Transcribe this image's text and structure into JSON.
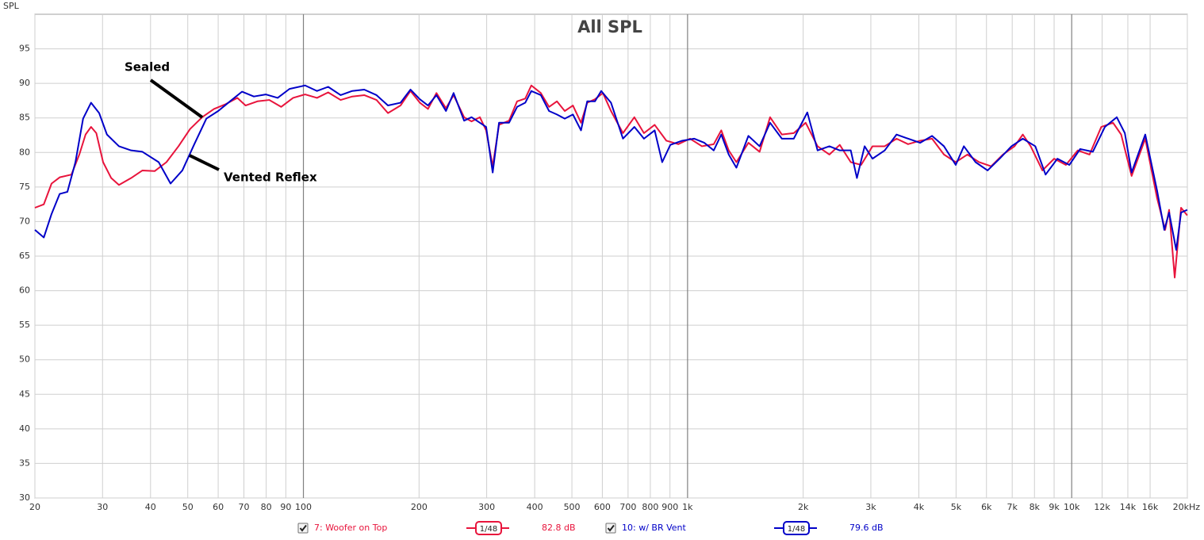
{
  "chart_data": {
    "type": "line",
    "title": "All SPL",
    "ylabel": "SPL",
    "log_x": true,
    "grid": true,
    "xlim": [
      20,
      20000
    ],
    "ylim": [
      30,
      100
    ],
    "xticks": [
      20,
      30,
      40,
      50,
      60,
      70,
      80,
      90,
      100,
      200,
      300,
      400,
      500,
      600,
      700,
      800,
      900,
      {
        "value": 1000,
        "label": "1k"
      },
      {
        "value": 2000,
        "label": "2k"
      },
      {
        "value": 3000,
        "label": "3k"
      },
      {
        "value": 4000,
        "label": "4k"
      },
      {
        "value": 5000,
        "label": "5k"
      },
      {
        "value": 6000,
        "label": "6k"
      },
      {
        "value": 7000,
        "label": "7k"
      },
      {
        "value": 8000,
        "label": "8k"
      },
      {
        "value": 9000,
        "label": "9k"
      },
      {
        "value": 10000,
        "label": "10k"
      },
      {
        "value": 12000,
        "label": "12k"
      },
      {
        "value": 14000,
        "label": "14k"
      },
      {
        "value": 16000,
        "label": "16k"
      },
      {
        "value": 20000,
        "label": "20kHz"
      }
    ],
    "yticks": [
      30,
      35,
      40,
      45,
      50,
      55,
      60,
      65,
      70,
      75,
      80,
      85,
      90,
      95
    ],
    "annotations": [
      "Sealed",
      "Vented Reflex"
    ],
    "series": [
      {
        "name": "7: Woofer on Top",
        "color": "#e8143c",
        "smoothing": "1/48",
        "level": "82.8 dB",
        "x": [
          20,
          21.1,
          22.1,
          23.2,
          24.9,
          26.1,
          27.1,
          28,
          28.9,
          30.1,
          31.6,
          33.1,
          35.6,
          38.1,
          41,
          44,
          47.3,
          50.7,
          54.5,
          58.5,
          62.8,
          67.3,
          70.7,
          75.9,
          81.5,
          87.5,
          94,
          101,
          108.5,
          116,
          125,
          134,
          144,
          155,
          166,
          179,
          190,
          201,
          211,
          222,
          235,
          246,
          262,
          274,
          288,
          299,
          311,
          323,
          343,
          360,
          378,
          392,
          415,
          436,
          457,
          479,
          503,
          528,
          548,
          574,
          602,
          632,
          679,
          727,
          770,
          821,
          881,
          946,
          1015,
          1090,
          1170,
          1224,
          1280,
          1340,
          1440,
          1540,
          1640,
          1760,
          1890,
          2030,
          2180,
          2340,
          2490,
          2660,
          2830,
          3030,
          3260,
          3500,
          3750,
          4030,
          4330,
          4650,
          4990,
          5350,
          5740,
          6170,
          6620,
          7100,
          7460,
          7820,
          8390,
          9000,
          9660,
          10370,
          11130,
          11940,
          12810,
          13450,
          14320,
          15540,
          16680,
          17510,
          17930,
          18540,
          19260,
          19990
        ],
        "values": [
          72.0,
          72.5,
          75.5,
          76.4,
          76.8,
          79.7,
          82.6,
          83.7,
          82.8,
          78.6,
          76.3,
          75.3,
          76.3,
          77.4,
          77.3,
          78.6,
          80.9,
          83.4,
          85.1,
          86.3,
          87.0,
          87.9,
          86.8,
          87.4,
          87.6,
          86.6,
          87.9,
          88.4,
          87.9,
          88.7,
          87.6,
          88.1,
          88.3,
          87.6,
          85.7,
          86.8,
          88.9,
          87.2,
          86.3,
          88.6,
          86.4,
          88.3,
          85.1,
          84.5,
          85.1,
          83.2,
          78.0,
          84.0,
          84.6,
          87.4,
          87.8,
          89.7,
          88.6,
          86.6,
          87.4,
          86.0,
          86.8,
          84.3,
          87.2,
          87.7,
          88.6,
          86.0,
          82.8,
          85.1,
          82.8,
          84.0,
          81.7,
          81.2,
          82.0,
          80.9,
          81.2,
          83.2,
          80.3,
          78.6,
          81.4,
          80.1,
          85.1,
          82.6,
          82.8,
          84.3,
          80.9,
          79.7,
          81.1,
          78.6,
          78.2,
          80.9,
          80.9,
          82.0,
          81.2,
          81.7,
          82.0,
          79.7,
          78.6,
          79.7,
          78.6,
          78.0,
          79.7,
          80.9,
          82.6,
          80.9,
          77.4,
          79.1,
          78.2,
          80.3,
          79.7,
          83.7,
          84.3,
          82.6,
          76.6,
          82.0,
          73.4,
          68.8,
          71.7,
          61.9,
          72.0,
          70.9
        ]
      },
      {
        "name": "10: w/ BR Vent",
        "color": "#0000c8",
        "smoothing": "1/48",
        "level": "79.6 dB",
        "x": [
          20,
          21.1,
          22.1,
          23.2,
          24.3,
          25.5,
          26.7,
          28,
          29.4,
          30.8,
          33.1,
          35.6,
          38.1,
          42,
          45.1,
          48.4,
          52,
          55.9,
          60,
          64.4,
          69.2,
          74.3,
          79.8,
          85.7,
          92,
          101,
          108.5,
          116,
          125,
          134,
          144,
          155,
          166,
          179,
          190,
          201,
          211,
          222,
          235,
          246,
          262,
          274,
          288,
          299,
          311,
          323,
          343,
          360,
          378,
          392,
          415,
          436,
          457,
          479,
          503,
          528,
          548,
          574,
          596,
          632,
          679,
          727,
          770,
          821,
          859,
          902,
          968,
          1040,
          1106,
          1170,
          1224,
          1280,
          1340,
          1440,
          1540,
          1640,
          1760,
          1890,
          2050,
          2180,
          2340,
          2490,
          2660,
          2760,
          2890,
          3030,
          3260,
          3500,
          3750,
          4030,
          4330,
          4650,
          4990,
          5240,
          5620,
          6040,
          6490,
          6970,
          7460,
          8040,
          8550,
          9180,
          9860,
          10520,
          11350,
          12200,
          13100,
          13750,
          14320,
          15540,
          16680,
          17420,
          17930,
          18710,
          19260,
          19990
        ],
        "values": [
          68.8,
          67.7,
          71.1,
          74.0,
          74.3,
          78.6,
          84.9,
          87.2,
          85.7,
          82.6,
          80.9,
          80.3,
          80.1,
          78.6,
          75.5,
          77.4,
          81.2,
          84.9,
          86.0,
          87.4,
          88.8,
          88.1,
          88.4,
          87.9,
          89.2,
          89.7,
          88.9,
          89.5,
          88.3,
          88.9,
          89.1,
          88.3,
          86.8,
          87.2,
          89.1,
          87.7,
          86.8,
          88.3,
          86.0,
          88.6,
          84.6,
          85.1,
          84.3,
          83.7,
          77.1,
          84.3,
          84.3,
          86.6,
          87.2,
          88.9,
          88.3,
          86.0,
          85.5,
          84.9,
          85.5,
          83.2,
          87.4,
          87.4,
          88.9,
          87.2,
          82.0,
          83.7,
          82.0,
          83.2,
          78.6,
          81.1,
          81.7,
          82.0,
          81.4,
          80.3,
          82.6,
          79.7,
          77.8,
          82.4,
          80.9,
          84.3,
          82.0,
          82.0,
          85.8,
          80.3,
          80.9,
          80.3,
          80.3,
          76.3,
          80.9,
          79.1,
          80.3,
          82.6,
          82.0,
          81.4,
          82.4,
          80.9,
          78.2,
          80.9,
          78.6,
          77.4,
          79.1,
          80.9,
          82.0,
          80.9,
          76.8,
          79.1,
          78.2,
          80.5,
          80.1,
          83.7,
          85.1,
          82.8,
          77.1,
          82.6,
          74.5,
          68.8,
          71.3,
          65.9,
          71.3,
          71.7
        ]
      }
    ]
  }
}
